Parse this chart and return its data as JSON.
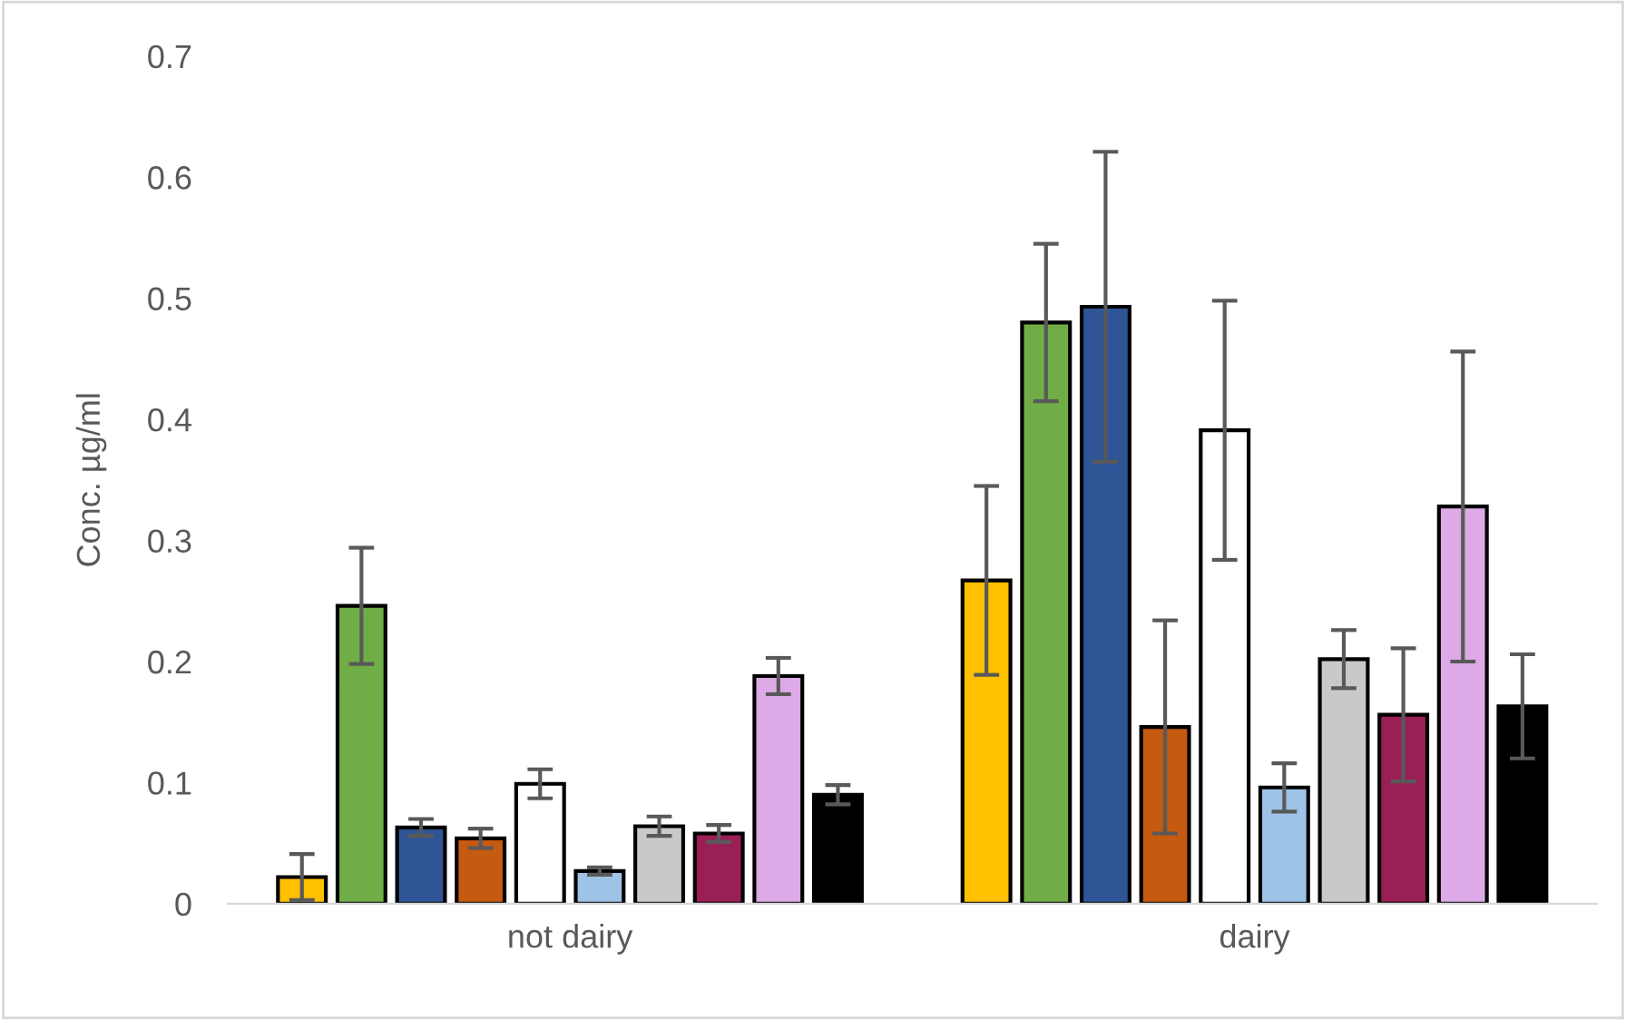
{
  "chart_data": {
    "type": "bar",
    "ylabel": "Conc. µg/ml",
    "categories": [
      "not dairy",
      "dairy"
    ],
    "ylim": [
      0,
      0.7
    ],
    "yticks": [
      0,
      0.1,
      0.2,
      0.3,
      0.4,
      0.5,
      0.6,
      0.7
    ],
    "grid": false,
    "legend": false,
    "series": [
      {
        "color": "#ffc000",
        "values": [
          0.022,
          0.267
        ],
        "errors": [
          0.019,
          0.078
        ]
      },
      {
        "color": "#70ad47",
        "values": [
          0.246,
          0.48
        ],
        "errors": [
          0.048,
          0.065
        ]
      },
      {
        "color": "#2f5597",
        "values": [
          0.063,
          0.493
        ],
        "errors": [
          0.007,
          0.128
        ]
      },
      {
        "color": "#c55a11",
        "values": [
          0.054,
          0.146
        ],
        "errors": [
          0.008,
          0.088
        ]
      },
      {
        "color": "#ffffff",
        "values": [
          0.099,
          0.391
        ],
        "errors": [
          0.012,
          0.107
        ]
      },
      {
        "color": "#9dc3e6",
        "values": [
          0.027,
          0.096
        ],
        "errors": [
          0.003,
          0.02
        ]
      },
      {
        "color": "#c9c9c9",
        "values": [
          0.064,
          0.202
        ],
        "errors": [
          0.008,
          0.024
        ]
      },
      {
        "color": "#991f55",
        "values": [
          0.058,
          0.156
        ],
        "errors": [
          0.007,
          0.055
        ]
      },
      {
        "color": "#dda9e6",
        "values": [
          0.188,
          0.328
        ],
        "errors": [
          0.015,
          0.128
        ]
      },
      {
        "color": "#000000",
        "values": [
          0.09,
          0.163
        ],
        "errors": [
          0.008,
          0.043
        ]
      }
    ]
  }
}
